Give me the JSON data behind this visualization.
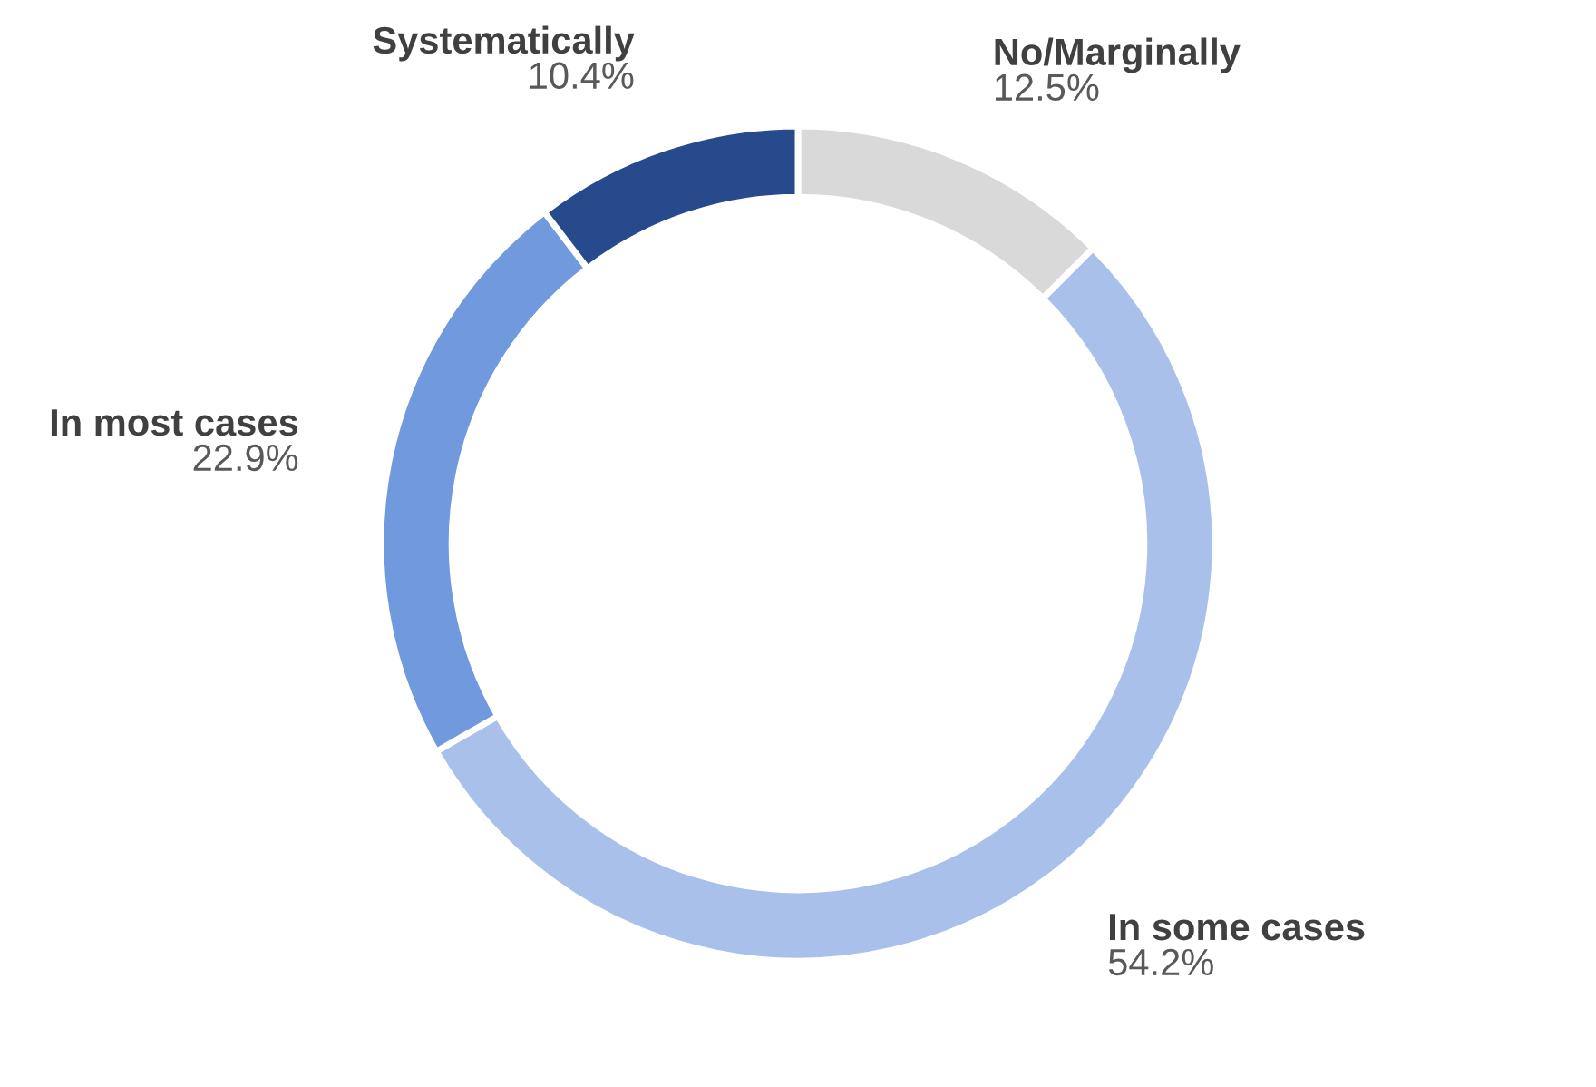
{
  "chart_data": {
    "type": "donut",
    "categories": [
      "No/Marginally",
      "In some cases",
      "In most cases",
      "Systematically"
    ],
    "values": [
      12.5,
      54.2,
      22.9,
      10.4
    ],
    "colors": [
      "#d9d9d9",
      "#a9c1ea",
      "#7199de",
      "#264a8c"
    ],
    "value_labels": [
      "12.5%",
      "54.2%",
      "22.9%",
      "10.4%"
    ],
    "legend": false
  }
}
